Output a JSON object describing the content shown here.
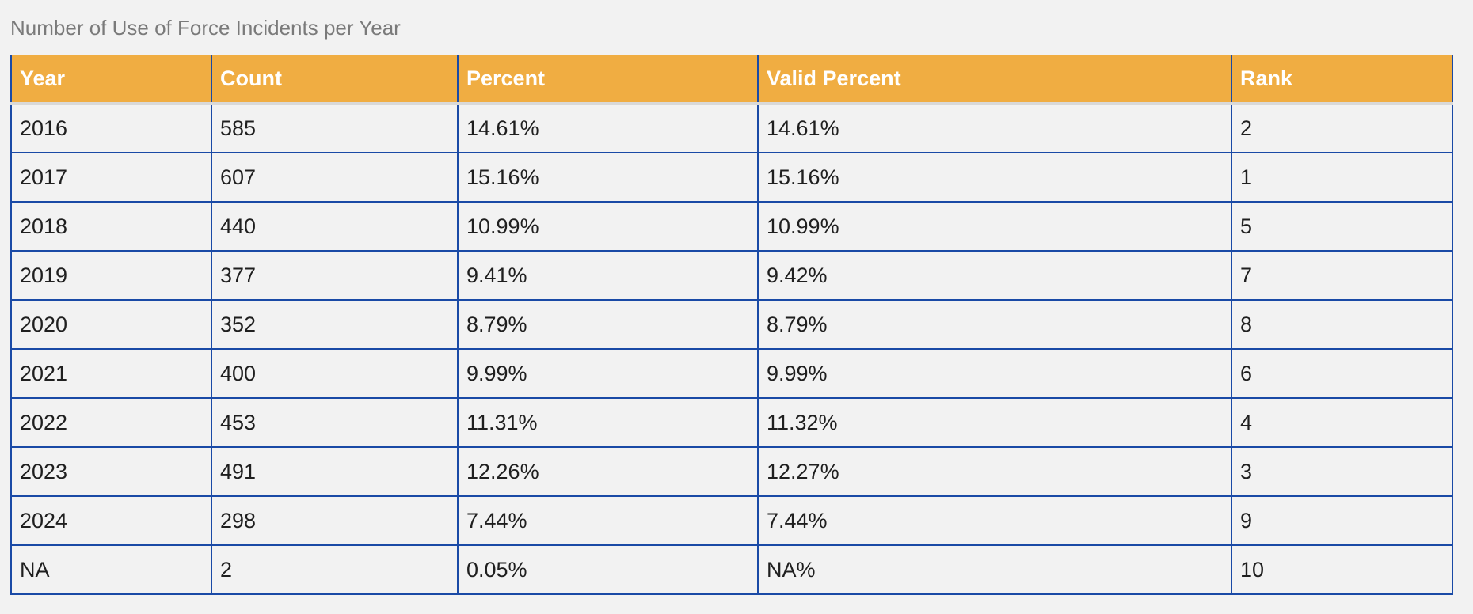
{
  "caption": "Number of Use of Force Incidents per Year",
  "columns": [
    "Year",
    "Count",
    "Percent",
    "Valid Percent",
    "Rank"
  ],
  "rows": [
    [
      "2016",
      "585",
      "14.61%",
      "14.61%",
      "2"
    ],
    [
      "2017",
      "607",
      "15.16%",
      "15.16%",
      "1"
    ],
    [
      "2018",
      "440",
      "10.99%",
      "10.99%",
      "5"
    ],
    [
      "2019",
      "377",
      "9.41%",
      "9.42%",
      "7"
    ],
    [
      "2020",
      "352",
      "8.79%",
      "8.79%",
      "8"
    ],
    [
      "2021",
      "400",
      "9.99%",
      "9.99%",
      "6"
    ],
    [
      "2022",
      "453",
      "11.31%",
      "11.32%",
      "4"
    ],
    [
      "2023",
      "491",
      "12.26%",
      "12.27%",
      "3"
    ],
    [
      "2024",
      "298",
      "7.44%",
      "7.44%",
      "9"
    ],
    [
      "NA",
      "2",
      "0.05%",
      "NA%",
      "10"
    ]
  ],
  "colors": {
    "header_bg": "#f0ad42",
    "header_text": "#ffffff",
    "border": "#1a4aa6",
    "background": "#f2f2f2",
    "caption_text": "#7a7a7a"
  }
}
